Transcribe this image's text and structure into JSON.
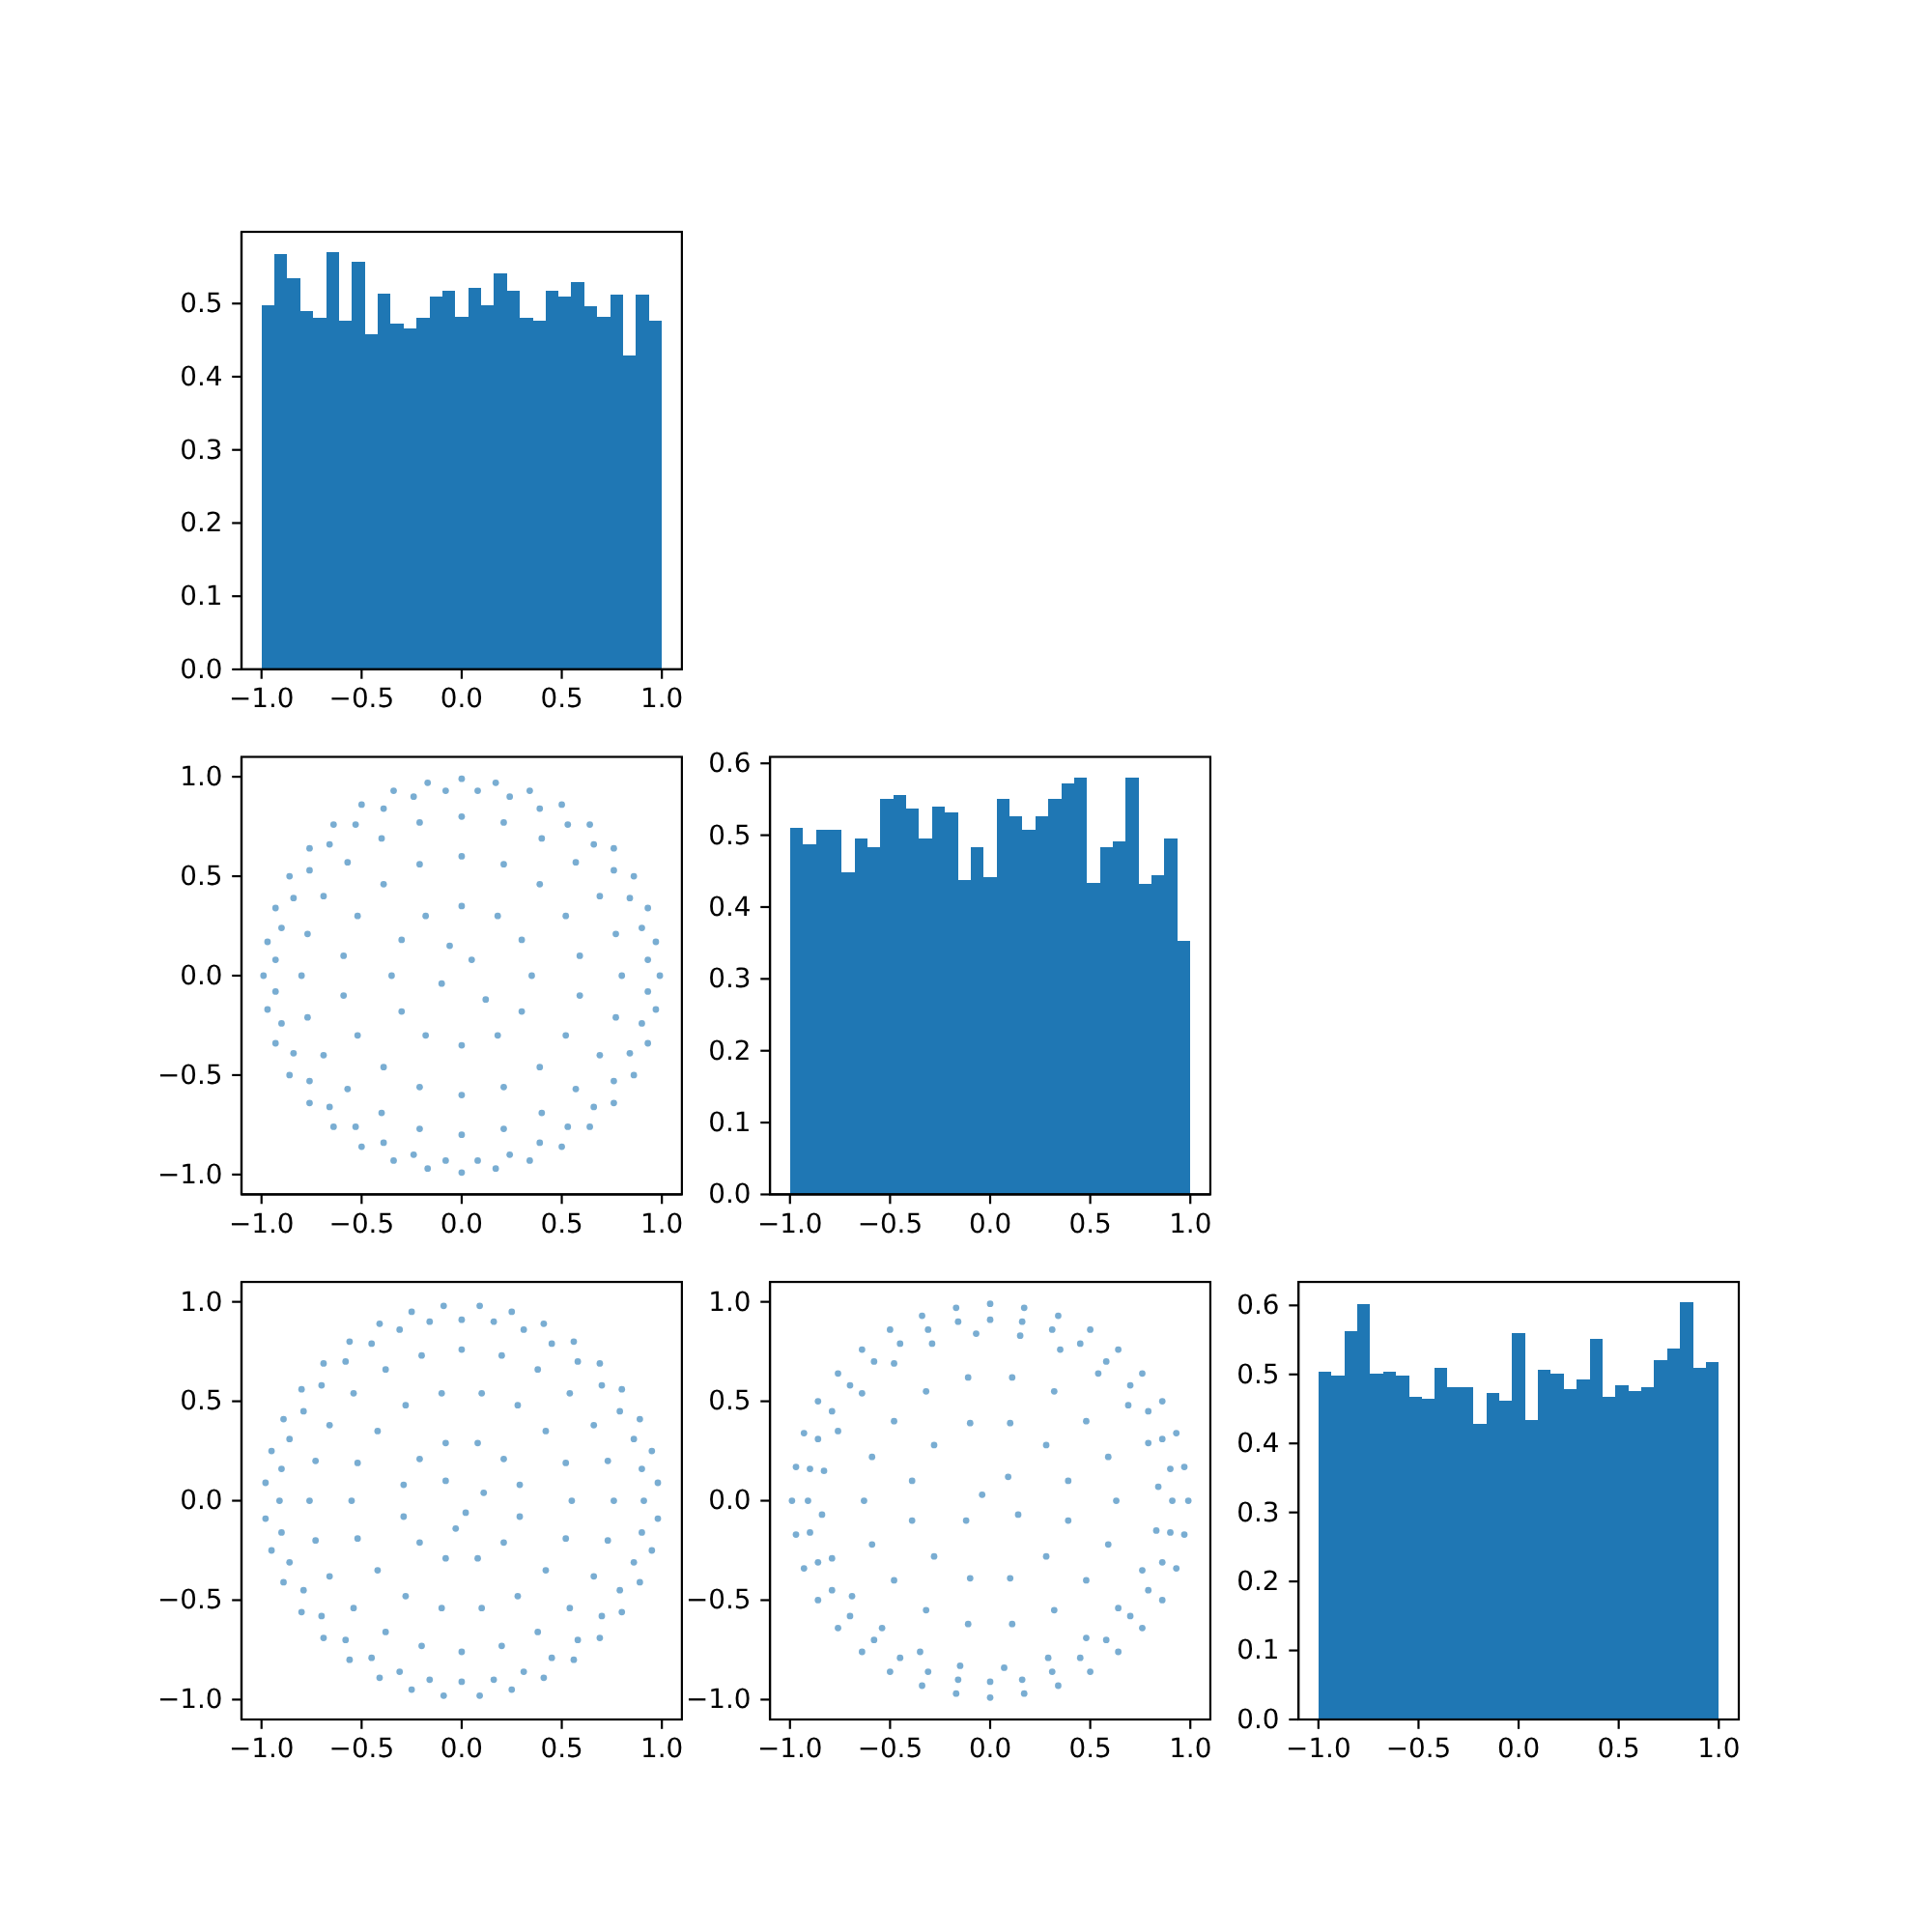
{
  "chart_data": [
    {
      "type": "histogram",
      "color": "#1f77b4",
      "bins": [
        -1,
        -0.935,
        -0.871,
        -0.806,
        -0.742,
        -0.677,
        -0.613,
        -0.548,
        -0.484,
        -0.419,
        -0.355,
        -0.29,
        -0.226,
        -0.161,
        -0.097,
        -0.032,
        0.032,
        0.097,
        0.161,
        0.226,
        0.29,
        0.355,
        0.419,
        0.484,
        0.548,
        0.613,
        0.677,
        0.742,
        0.806,
        0.871,
        0.935,
        1
      ],
      "values": [
        0.498,
        0.568,
        0.535,
        0.49,
        0.48,
        0.57,
        0.477,
        0.557,
        0.458,
        0.514,
        0.472,
        0.466,
        0.48,
        0.509,
        0.517,
        0.482,
        0.522,
        0.498,
        0.541,
        0.517,
        0.48,
        0.477,
        0.517,
        0.509,
        0.53,
        0.496,
        0.482,
        0.512,
        0.429,
        0.512,
        0.477
      ],
      "xlim": [
        -1.1,
        1.1
      ],
      "xticks": [
        {
          "value": -1,
          "label": "−1.0"
        },
        {
          "value": -0.5,
          "label": "−0.5"
        },
        {
          "value": 0,
          "label": "0.0"
        },
        {
          "value": 0.5,
          "label": "0.5"
        },
        {
          "value": 1,
          "label": "1.0"
        }
      ],
      "ylim": [
        0,
        0.598
      ],
      "yticks": [
        {
          "value": 0,
          "label": "0.0"
        },
        0.1,
        0.2,
        0.3,
        0.4,
        0.5
      ]
    },
    {
      "type": "scatter",
      "color": "#1f77b4",
      "marker": "circle",
      "x": [
        0.99,
        0.97,
        0.93,
        0.86,
        0.76,
        0.64,
        0.5,
        0.34,
        0.17,
        0,
        -0.17,
        -0.34,
        -0.5,
        -0.64,
        -0.76,
        -0.86,
        -0.93,
        -0.97,
        -0.99,
        -0.97,
        -0.93,
        -0.86,
        -0.76,
        -0.64,
        -0.5,
        -0.34,
        -0.17,
        0,
        0.17,
        0.34,
        0.5,
        0.64,
        0.76,
        0.86,
        0.93,
        0.97,
        0.93,
        0.9,
        0.84,
        0.76,
        0.66,
        0.53,
        0.39,
        0.24,
        0.08,
        -0.08,
        -0.24,
        -0.39,
        -0.53,
        -0.66,
        -0.76,
        -0.84,
        -0.9,
        -0.93,
        -0.93,
        -0.9,
        -0.84,
        -0.76,
        -0.66,
        -0.53,
        -0.39,
        -0.24,
        -0.08,
        0.08,
        0.24,
        0.39,
        0.53,
        0.66,
        0.76,
        0.84,
        0.9,
        0.93,
        0.8,
        0.77,
        0.69,
        0.57,
        0.4,
        0.21,
        0,
        -0.21,
        -0.4,
        -0.57,
        -0.69,
        -0.77,
        -0.8,
        -0.77,
        -0.69,
        -0.57,
        -0.4,
        -0.21,
        0,
        0.21,
        0.4,
        0.57,
        0.69,
        0.77,
        0.59,
        0.52,
        0.39,
        0.21,
        0,
        -0.21,
        -0.39,
        -0.52,
        -0.59,
        -0.59,
        -0.52,
        -0.39,
        -0.21,
        0,
        0.21,
        0.39,
        0.52,
        0.59,
        0.35,
        0.3,
        0.18,
        0,
        -0.18,
        -0.3,
        -0.35,
        -0.3,
        -0.18,
        0,
        0.18,
        0.3,
        0.05,
        -0.1,
        0.12,
        -0.06
      ],
      "values": [
        0,
        0.17,
        0.34,
        0.5,
        0.64,
        0.76,
        0.86,
        0.93,
        0.97,
        0.99,
        0.97,
        0.93,
        0.86,
        0.76,
        0.64,
        0.5,
        0.34,
        0.17,
        0,
        -0.17,
        -0.34,
        -0.5,
        -0.64,
        -0.76,
        -0.86,
        -0.93,
        -0.97,
        -0.99,
        -0.97,
        -0.93,
        -0.86,
        -0.76,
        -0.64,
        -0.5,
        -0.34,
        -0.17,
        0.08,
        0.24,
        0.39,
        0.53,
        0.66,
        0.76,
        0.84,
        0.9,
        0.93,
        0.93,
        0.9,
        0.84,
        0.76,
        0.66,
        0.53,
        0.39,
        0.24,
        0.08,
        -0.08,
        -0.24,
        -0.39,
        -0.53,
        -0.66,
        -0.76,
        -0.84,
        -0.9,
        -0.93,
        -0.93,
        -0.9,
        -0.84,
        -0.76,
        -0.66,
        -0.53,
        -0.39,
        -0.24,
        -0.08,
        0,
        0.21,
        0.4,
        0.57,
        0.69,
        0.77,
        0.8,
        0.77,
        0.69,
        0.57,
        0.4,
        0.21,
        0,
        -0.21,
        -0.4,
        -0.57,
        -0.69,
        -0.77,
        -0.8,
        -0.77,
        -0.69,
        -0.57,
        -0.4,
        -0.21,
        0.1,
        0.3,
        0.46,
        0.56,
        0.6,
        0.56,
        0.46,
        0.3,
        0.1,
        -0.1,
        -0.3,
        -0.46,
        -0.56,
        -0.6,
        -0.56,
        -0.46,
        -0.3,
        -0.1,
        0,
        0.18,
        0.3,
        0.35,
        0.3,
        0.18,
        0,
        -0.18,
        -0.3,
        -0.35,
        -0.3,
        -0.18,
        0.08,
        -0.04,
        -0.12,
        0.15
      ],
      "xlim": [
        -1.1,
        1.1
      ],
      "xticks": [
        {
          "value": -1,
          "label": "−1.0"
        },
        {
          "value": -0.5,
          "label": "−0.5"
        },
        {
          "value": 0,
          "label": "0.0"
        },
        {
          "value": 0.5,
          "label": "0.5"
        },
        {
          "value": 1,
          "label": "1.0"
        }
      ],
      "ylim": [
        -1.1,
        1.1
      ],
      "yticks": [
        {
          "value": -1,
          "label": "−1.0"
        },
        {
          "value": -0.5,
          "label": "−0.5"
        },
        {
          "value": 0,
          "label": "0.0"
        },
        {
          "value": 0.5,
          "label": "0.5"
        },
        {
          "value": 1,
          "label": "1.0"
        }
      ]
    },
    {
      "type": "histogram",
      "color": "#1f77b4",
      "bins": [
        -1,
        -0.935,
        -0.871,
        -0.806,
        -0.742,
        -0.677,
        -0.613,
        -0.548,
        -0.484,
        -0.419,
        -0.355,
        -0.29,
        -0.226,
        -0.161,
        -0.097,
        -0.032,
        0.032,
        0.097,
        0.161,
        0.226,
        0.29,
        0.355,
        0.419,
        0.484,
        0.548,
        0.613,
        0.677,
        0.742,
        0.806,
        0.871,
        0.935,
        1
      ],
      "values": [
        0.51,
        0.488,
        0.507,
        0.507,
        0.448,
        0.496,
        0.483,
        0.55,
        0.556,
        0.537,
        0.496,
        0.54,
        0.532,
        0.437,
        0.483,
        0.442,
        0.55,
        0.526,
        0.507,
        0.526,
        0.55,
        0.572,
        0.58,
        0.434,
        0.483,
        0.491,
        0.58,
        0.432,
        0.445,
        0.496,
        0.353
      ],
      "xlim": [
        -1.1,
        1.1
      ],
      "xticks": [
        {
          "value": -1,
          "label": "−1.0"
        },
        {
          "value": -0.5,
          "label": "−0.5"
        },
        {
          "value": 0,
          "label": "0.0"
        },
        {
          "value": 0.5,
          "label": "0.5"
        },
        {
          "value": 1,
          "label": "1.0"
        }
      ],
      "ylim": [
        0,
        0.609
      ],
      "yticks": [
        {
          "value": 0,
          "label": "0.0"
        },
        0.1,
        0.2,
        0.3,
        0.4,
        0.5,
        0.6
      ]
    },
    {
      "type": "scatter",
      "color": "#1f77b4",
      "marker": "circle",
      "x": [
        0.98,
        0.95,
        0.89,
        0.8,
        0.69,
        0.56,
        0.41,
        0.25,
        0.09,
        -0.09,
        -0.25,
        -0.41,
        -0.56,
        -0.69,
        -0.8,
        -0.89,
        -0.95,
        -0.98,
        -0.98,
        -0.95,
        -0.89,
        -0.8,
        -0.69,
        -0.56,
        -0.41,
        -0.25,
        -0.09,
        0.09,
        0.25,
        0.41,
        0.56,
        0.69,
        0.8,
        0.89,
        0.95,
        0.98,
        0.91,
        0.9,
        0.86,
        0.79,
        0.7,
        0.58,
        0.45,
        0.31,
        0.16,
        0,
        -0.16,
        -0.31,
        -0.45,
        -0.58,
        -0.7,
        -0.79,
        -0.86,
        -0.9,
        -0.91,
        -0.9,
        -0.86,
        -0.79,
        -0.7,
        -0.58,
        -0.45,
        -0.31,
        -0.16,
        0,
        0.16,
        0.31,
        0.45,
        0.58,
        0.7,
        0.79,
        0.86,
        0.9,
        0.76,
        0.73,
        0.66,
        0.54,
        0.38,
        0.2,
        0,
        -0.2,
        -0.38,
        -0.54,
        -0.66,
        -0.73,
        -0.76,
        -0.73,
        -0.66,
        -0.54,
        -0.38,
        -0.2,
        0,
        0.2,
        0.38,
        0.54,
        0.66,
        0.73,
        0.55,
        0.52,
        0.42,
        0.28,
        0.1,
        -0.1,
        -0.28,
        -0.42,
        -0.52,
        -0.55,
        -0.52,
        -0.42,
        -0.28,
        -0.1,
        0.1,
        0.28,
        0.42,
        0.52,
        0.29,
        0.21,
        0.08,
        -0.08,
        -0.21,
        -0.29,
        -0.29,
        -0.21,
        -0.08,
        0.08,
        0.21,
        0.29,
        0.02,
        -0.08,
        0.11,
        -0.03
      ],
      "values": [
        0.09,
        0.25,
        0.41,
        0.56,
        0.69,
        0.8,
        0.89,
        0.95,
        0.98,
        0.98,
        0.95,
        0.89,
        0.8,
        0.69,
        0.56,
        0.41,
        0.25,
        0.09,
        -0.09,
        -0.25,
        -0.41,
        -0.56,
        -0.69,
        -0.8,
        -0.89,
        -0.95,
        -0.98,
        -0.98,
        -0.95,
        -0.89,
        -0.8,
        -0.69,
        -0.56,
        -0.41,
        -0.25,
        -0.09,
        0,
        0.16,
        0.31,
        0.45,
        0.58,
        0.7,
        0.79,
        0.86,
        0.9,
        0.91,
        0.9,
        0.86,
        0.79,
        0.7,
        0.58,
        0.45,
        0.31,
        0.16,
        0,
        -0.16,
        -0.31,
        -0.45,
        -0.58,
        -0.7,
        -0.79,
        -0.86,
        -0.9,
        -0.91,
        -0.9,
        -0.86,
        -0.79,
        -0.7,
        -0.58,
        -0.45,
        -0.31,
        -0.16,
        0,
        0.2,
        0.38,
        0.54,
        0.66,
        0.73,
        0.76,
        0.73,
        0.66,
        0.54,
        0.38,
        0.2,
        0,
        -0.2,
        -0.38,
        -0.54,
        -0.66,
        -0.73,
        -0.76,
        -0.73,
        -0.66,
        -0.54,
        -0.38,
        -0.2,
        0,
        0.19,
        0.35,
        0.48,
        0.54,
        0.54,
        0.48,
        0.35,
        0.19,
        0,
        -0.19,
        -0.35,
        -0.48,
        -0.54,
        -0.54,
        -0.48,
        -0.35,
        -0.19,
        0.08,
        0.21,
        0.29,
        0.29,
        0.21,
        0.08,
        -0.08,
        -0.21,
        -0.29,
        -0.29,
        -0.21,
        -0.08,
        -0.06,
        0.1,
        0.04,
        -0.14
      ],
      "xlim": [
        -1.1,
        1.1
      ],
      "xticks": [
        {
          "value": -1,
          "label": "−1.0"
        },
        {
          "value": -0.5,
          "label": "−0.5"
        },
        {
          "value": 0,
          "label": "0.0"
        },
        {
          "value": 0.5,
          "label": "0.5"
        },
        {
          "value": 1,
          "label": "1.0"
        }
      ],
      "ylim": [
        -1.1,
        1.1
      ],
      "yticks": [
        {
          "value": -1,
          "label": "−1.0"
        },
        {
          "value": -0.5,
          "label": "−0.5"
        },
        {
          "value": 0,
          "label": "0.0"
        },
        {
          "value": 0.5,
          "label": "0.5"
        },
        {
          "value": 1,
          "label": "1.0"
        }
      ]
    },
    {
      "type": "scatter",
      "color": "#1f77b4",
      "marker": "circle",
      "x": [
        0.99,
        0.97,
        0.93,
        0.86,
        0.76,
        0.64,
        0.5,
        0.34,
        0.17,
        0,
        -0.17,
        -0.34,
        -0.5,
        -0.64,
        -0.76,
        -0.86,
        -0.93,
        -0.97,
        -0.99,
        -0.97,
        -0.93,
        -0.86,
        -0.76,
        -0.64,
        -0.5,
        -0.34,
        -0.17,
        0,
        0.17,
        0.34,
        0.5,
        0.64,
        0.76,
        0.86,
        0.93,
        0.97,
        0.91,
        0.9,
        0.86,
        0.79,
        0.7,
        0.58,
        0.45,
        0.31,
        0.16,
        0,
        -0.16,
        -0.31,
        -0.45,
        -0.58,
        -0.7,
        -0.79,
        -0.86,
        -0.9,
        -0.91,
        -0.9,
        -0.86,
        -0.79,
        -0.7,
        -0.58,
        -0.45,
        -0.31,
        -0.16,
        0,
        0.16,
        0.31,
        0.45,
        0.58,
        0.7,
        0.79,
        0.86,
        0.9,
        0.84,
        0.79,
        0.69,
        0.54,
        0.35,
        0.15,
        -0.07,
        -0.29,
        -0.48,
        -0.64,
        -0.76,
        -0.83,
        -0.84,
        -0.79,
        -0.69,
        -0.54,
        -0.35,
        -0.15,
        0.07,
        0.29,
        0.48,
        0.64,
        0.76,
        0.83,
        0.63,
        0.59,
        0.48,
        0.32,
        0.11,
        -0.11,
        -0.32,
        -0.48,
        -0.59,
        -0.63,
        -0.59,
        -0.48,
        -0.32,
        -0.11,
        0.11,
        0.32,
        0.48,
        0.59,
        0.39,
        0.28,
        0.1,
        -0.1,
        -0.28,
        -0.39,
        -0.39,
        -0.28,
        -0.1,
        0.1,
        0.28,
        0.39,
        -0.04,
        0.09,
        0.14,
        -0.12
      ],
      "values": [
        0,
        0.17,
        0.34,
        0.5,
        0.64,
        0.76,
        0.86,
        0.93,
        0.97,
        0.99,
        0.97,
        0.93,
        0.86,
        0.76,
        0.64,
        0.5,
        0.34,
        0.17,
        0,
        -0.17,
        -0.34,
        -0.5,
        -0.64,
        -0.76,
        -0.86,
        -0.93,
        -0.97,
        -0.99,
        -0.97,
        -0.93,
        -0.86,
        -0.76,
        -0.64,
        -0.5,
        -0.34,
        -0.17,
        0,
        0.16,
        0.31,
        0.45,
        0.58,
        0.7,
        0.79,
        0.86,
        0.9,
        0.91,
        0.9,
        0.86,
        0.79,
        0.7,
        0.58,
        0.45,
        0.31,
        0.16,
        0,
        -0.16,
        -0.31,
        -0.45,
        -0.58,
        -0.7,
        -0.79,
        -0.86,
        -0.9,
        -0.91,
        -0.9,
        -0.86,
        -0.79,
        -0.7,
        -0.58,
        -0.45,
        -0.31,
        -0.16,
        0.07,
        0.29,
        0.48,
        0.64,
        0.76,
        0.83,
        0.84,
        0.79,
        0.69,
        0.54,
        0.35,
        0.15,
        -0.07,
        -0.29,
        -0.48,
        -0.64,
        -0.76,
        -0.83,
        -0.84,
        -0.79,
        -0.69,
        -0.54,
        -0.35,
        -0.15,
        0,
        0.22,
        0.4,
        0.55,
        0.62,
        0.62,
        0.55,
        0.4,
        0.22,
        0,
        -0.22,
        -0.4,
        -0.55,
        -0.62,
        -0.62,
        -0.55,
        -0.4,
        -0.22,
        0.1,
        0.28,
        0.39,
        0.39,
        0.28,
        0.1,
        -0.1,
        -0.28,
        -0.39,
        -0.39,
        -0.28,
        -0.1,
        0.03,
        0.12,
        -0.07,
        -0.1
      ],
      "xlim": [
        -1.1,
        1.1
      ],
      "xticks": [
        {
          "value": -1,
          "label": "−1.0"
        },
        {
          "value": -0.5,
          "label": "−0.5"
        },
        {
          "value": 0,
          "label": "0.0"
        },
        {
          "value": 0.5,
          "label": "0.5"
        },
        {
          "value": 1,
          "label": "1.0"
        }
      ],
      "ylim": [
        -1.1,
        1.1
      ],
      "yticks": [
        {
          "value": -1,
          "label": "−1.0"
        },
        {
          "value": -0.5,
          "label": "−0.5"
        },
        {
          "value": 0,
          "label": "0.0"
        },
        {
          "value": 0.5,
          "label": "0.5"
        },
        {
          "value": 1,
          "label": "1.0"
        }
      ]
    },
    {
      "type": "histogram",
      "color": "#1f77b4",
      "bins": [
        -1,
        -0.935,
        -0.871,
        -0.806,
        -0.742,
        -0.677,
        -0.613,
        -0.548,
        -0.484,
        -0.419,
        -0.355,
        -0.29,
        -0.226,
        -0.161,
        -0.097,
        -0.032,
        0.032,
        0.097,
        0.161,
        0.226,
        0.29,
        0.355,
        0.419,
        0.484,
        0.548,
        0.613,
        0.677,
        0.742,
        0.806,
        0.871,
        0.935,
        1
      ],
      "values": [
        0.504,
        0.498,
        0.562,
        0.602,
        0.501,
        0.504,
        0.498,
        0.467,
        0.465,
        0.509,
        0.481,
        0.481,
        0.428,
        0.473,
        0.462,
        0.56,
        0.434,
        0.507,
        0.501,
        0.479,
        0.493,
        0.551,
        0.467,
        0.484,
        0.476,
        0.481,
        0.521,
        0.538,
        0.605,
        0.509,
        0.518
      ],
      "xlim": [
        -1.1,
        1.1
      ],
      "xticks": [
        {
          "value": -1,
          "label": "−1.0"
        },
        {
          "value": -0.5,
          "label": "−0.5"
        },
        {
          "value": 0,
          "label": "0.0"
        },
        {
          "value": 0.5,
          "label": "0.5"
        },
        {
          "value": 1,
          "label": "1.0"
        }
      ],
      "ylim": [
        0,
        0.634
      ],
      "yticks": [
        {
          "value": 0,
          "label": "0.0"
        },
        0.1,
        0.2,
        0.3,
        0.4,
        0.5,
        0.6
      ]
    }
  ]
}
